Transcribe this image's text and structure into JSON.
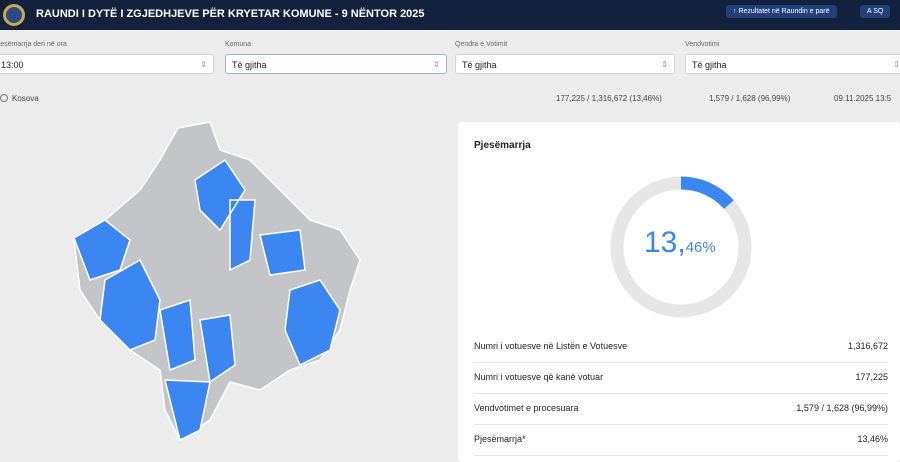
{
  "header": {
    "title": "RAUNDI I DYTË I ZGJEDHJEVE PËR KRYETAR KOMUNE - 9 NËNTOR 2025",
    "button": "Rezultatet në Raundin e parë",
    "language": "SQ"
  },
  "filters": [
    {
      "label": "Pjesëmarrja deri në ora",
      "value": "13:00"
    },
    {
      "label": "Komuna",
      "value": "Të gjitha"
    },
    {
      "label": "Qendra e Votimit",
      "value": "Të gjitha"
    },
    {
      "label": "Vendvotimi",
      "value": "Të gjitha"
    }
  ],
  "location": "Kosova",
  "stats": {
    "voters": "177,225 / 1,316,672 (13,46%)",
    "stations": "1,579 / 1,628 (96,99%)",
    "updated": "09.11.2025 13:5"
  },
  "card": {
    "title": "Pjesëmarrja",
    "donut": {
      "value": 13.46,
      "integer_label": "13,",
      "decimal_label": "46%"
    },
    "rows": [
      [
        "Numri i votuesve në Listën e Votuesve",
        "1,316,672"
      ],
      [
        "Numri i votuesve që kanë votuar",
        "177,225"
      ],
      [
        "Vendvotimet e procesuara",
        "1,579 / 1,628 (96,99%)"
      ],
      [
        "Pjesëmarrja*",
        "13,46%"
      ]
    ]
  }
}
